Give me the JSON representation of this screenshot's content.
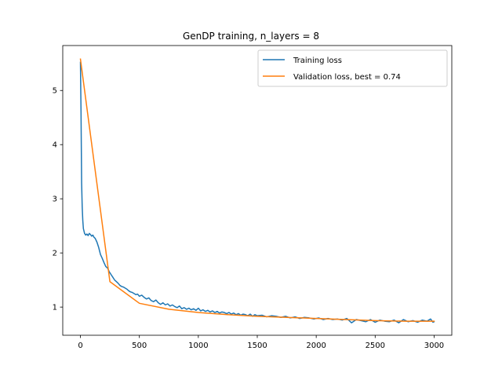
{
  "chart_data": {
    "type": "line",
    "title": "GenDP training, n_layers = 8",
    "xlabel": "",
    "ylabel": "",
    "xlim": [
      -150,
      3150
    ],
    "ylim": [
      0.48,
      5.83
    ],
    "xticks": [
      0,
      500,
      1000,
      1500,
      2000,
      2500,
      3000
    ],
    "yticks": [
      1,
      2,
      3,
      4,
      5
    ],
    "grid": false,
    "legend_position": "top-right",
    "series": [
      {
        "name": "Training loss",
        "color": "#1f77b4",
        "x": [
          0,
          5,
          10,
          15,
          20,
          25,
          35,
          45,
          55,
          65,
          75,
          85,
          95,
          105,
          115,
          125,
          140,
          155,
          170,
          185,
          200,
          215,
          230,
          245,
          260,
          275,
          290,
          305,
          320,
          335,
          350,
          365,
          380,
          395,
          410,
          425,
          440,
          455,
          470,
          485,
          500,
          520,
          540,
          560,
          580,
          600,
          620,
          640,
          660,
          680,
          700,
          720,
          740,
          760,
          780,
          800,
          820,
          840,
          860,
          880,
          900,
          920,
          940,
          960,
          980,
          1000,
          1020,
          1040,
          1060,
          1080,
          1100,
          1120,
          1140,
          1160,
          1180,
          1200,
          1220,
          1240,
          1260,
          1280,
          1300,
          1320,
          1340,
          1360,
          1380,
          1400,
          1420,
          1440,
          1460,
          1480,
          1500,
          1540,
          1580,
          1620,
          1660,
          1700,
          1740,
          1780,
          1820,
          1860,
          1900,
          1940,
          1980,
          2020,
          2060,
          2100,
          2140,
          2180,
          2220,
          2260,
          2300,
          2340,
          2380,
          2420,
          2460,
          2500,
          2540,
          2580,
          2620,
          2660,
          2700,
          2740,
          2780,
          2820,
          2860,
          2900,
          2940,
          2970,
          2990,
          3000
        ],
        "values": [
          5.52,
          4.6,
          3.3,
          2.85,
          2.6,
          2.45,
          2.36,
          2.33,
          2.35,
          2.32,
          2.36,
          2.34,
          2.31,
          2.33,
          2.29,
          2.27,
          2.2,
          2.1,
          1.97,
          1.9,
          1.82,
          1.75,
          1.72,
          1.65,
          1.6,
          1.55,
          1.5,
          1.47,
          1.44,
          1.4,
          1.38,
          1.37,
          1.35,
          1.33,
          1.3,
          1.28,
          1.27,
          1.25,
          1.23,
          1.24,
          1.2,
          1.22,
          1.18,
          1.15,
          1.17,
          1.12,
          1.1,
          1.13,
          1.08,
          1.05,
          1.08,
          1.04,
          1.06,
          1.02,
          1.04,
          1.01,
          0.99,
          1.02,
          0.97,
          0.99,
          0.96,
          0.98,
          0.95,
          0.97,
          0.94,
          0.98,
          0.93,
          0.95,
          0.92,
          0.94,
          0.91,
          0.93,
          0.9,
          0.92,
          0.89,
          0.91,
          0.9,
          0.88,
          0.9,
          0.87,
          0.89,
          0.86,
          0.88,
          0.85,
          0.87,
          0.86,
          0.84,
          0.87,
          0.83,
          0.86,
          0.84,
          0.85,
          0.82,
          0.84,
          0.83,
          0.81,
          0.83,
          0.8,
          0.82,
          0.79,
          0.81,
          0.8,
          0.78,
          0.8,
          0.77,
          0.79,
          0.77,
          0.78,
          0.76,
          0.79,
          0.71,
          0.77,
          0.75,
          0.73,
          0.77,
          0.72,
          0.76,
          0.74,
          0.73,
          0.76,
          0.71,
          0.77,
          0.73,
          0.75,
          0.72,
          0.76,
          0.74,
          0.78,
          0.72,
          0.73
        ]
      },
      {
        "name": "Validation loss, best = 0.74",
        "color": "#ff7f0e",
        "x": [
          0,
          250,
          500,
          750,
          1000,
          1250,
          1500,
          1750,
          2000,
          2250,
          2500,
          2750,
          3000
        ],
        "values": [
          5.58,
          1.47,
          1.07,
          0.96,
          0.9,
          0.86,
          0.83,
          0.81,
          0.79,
          0.77,
          0.75,
          0.74,
          0.74
        ]
      }
    ]
  }
}
